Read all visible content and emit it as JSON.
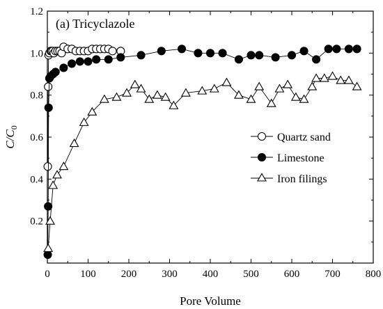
{
  "chart_data": {
    "type": "scatter",
    "title": "(a) Tricyclazole",
    "xlabel": "Pore Volume",
    "ylabel_main": "C/C",
    "ylabel_sub": "0",
    "xlim": [
      0,
      800
    ],
    "ylim": [
      0,
      1.2
    ],
    "x_ticks": [
      0,
      100,
      200,
      300,
      400,
      500,
      600,
      700,
      800
    ],
    "y_ticks": [
      0.2,
      0.4,
      0.6,
      0.8,
      1.0,
      1.2
    ],
    "x_tick_labels": [
      "0",
      "100",
      "200",
      "300",
      "400",
      "500",
      "600",
      "700",
      "800"
    ],
    "y_tick_labels": [
      "0.2",
      "0.4",
      "0.6",
      "0.8",
      "1.0",
      "1.2"
    ],
    "legend_position": "center-right",
    "series": [
      {
        "name": "Quartz sand",
        "marker": "open-circle",
        "x": [
          1,
          2,
          3,
          5,
          8,
          10,
          13,
          16,
          20,
          25,
          30,
          35,
          40,
          50,
          60,
          70,
          80,
          90,
          100,
          110,
          120,
          130,
          140,
          150,
          160,
          180
        ],
        "y": [
          0.46,
          0.84,
          0.99,
          1.0,
          1.01,
          1.01,
          1.01,
          1.0,
          1.01,
          1.01,
          1.01,
          1.0,
          1.03,
          1.02,
          1.02,
          1.01,
          1.01,
          1.01,
          1.01,
          1.02,
          1.02,
          1.02,
          1.02,
          1.02,
          1.01,
          1.01
        ]
      },
      {
        "name": "Limestone",
        "marker": "filled-circle",
        "x": [
          1,
          2,
          3,
          5,
          8,
          14,
          20,
          40,
          60,
          80,
          100,
          120,
          150,
          180,
          230,
          280,
          330,
          370,
          400,
          430,
          470,
          500,
          520,
          560,
          600,
          630,
          660,
          690,
          710,
          740,
          760
        ],
        "y": [
          0.04,
          0.27,
          0.74,
          0.88,
          0.89,
          0.9,
          0.91,
          0.93,
          0.95,
          0.96,
          0.96,
          0.97,
          0.97,
          0.98,
          0.99,
          1.01,
          1.02,
          1.0,
          1.0,
          1.0,
          0.97,
          0.99,
          0.99,
          0.98,
          0.99,
          1.01,
          0.97,
          1.02,
          1.02,
          1.02,
          1.02
        ]
      },
      {
        "name": "Iron filings",
        "marker": "open-triangle",
        "x": [
          2,
          7,
          14,
          24,
          40,
          66,
          90,
          110,
          140,
          170,
          195,
          215,
          230,
          250,
          270,
          290,
          310,
          340,
          380,
          410,
          440,
          470,
          500,
          520,
          550,
          570,
          590,
          610,
          630,
          650,
          660,
          680,
          700,
          720,
          740,
          760
        ],
        "y": [
          0.07,
          0.2,
          0.37,
          0.42,
          0.46,
          0.57,
          0.67,
          0.72,
          0.78,
          0.79,
          0.81,
          0.85,
          0.83,
          0.78,
          0.8,
          0.79,
          0.75,
          0.81,
          0.82,
          0.83,
          0.86,
          0.8,
          0.78,
          0.84,
          0.76,
          0.83,
          0.85,
          0.79,
          0.78,
          0.84,
          0.88,
          0.88,
          0.89,
          0.87,
          0.87,
          0.84
        ]
      }
    ]
  }
}
